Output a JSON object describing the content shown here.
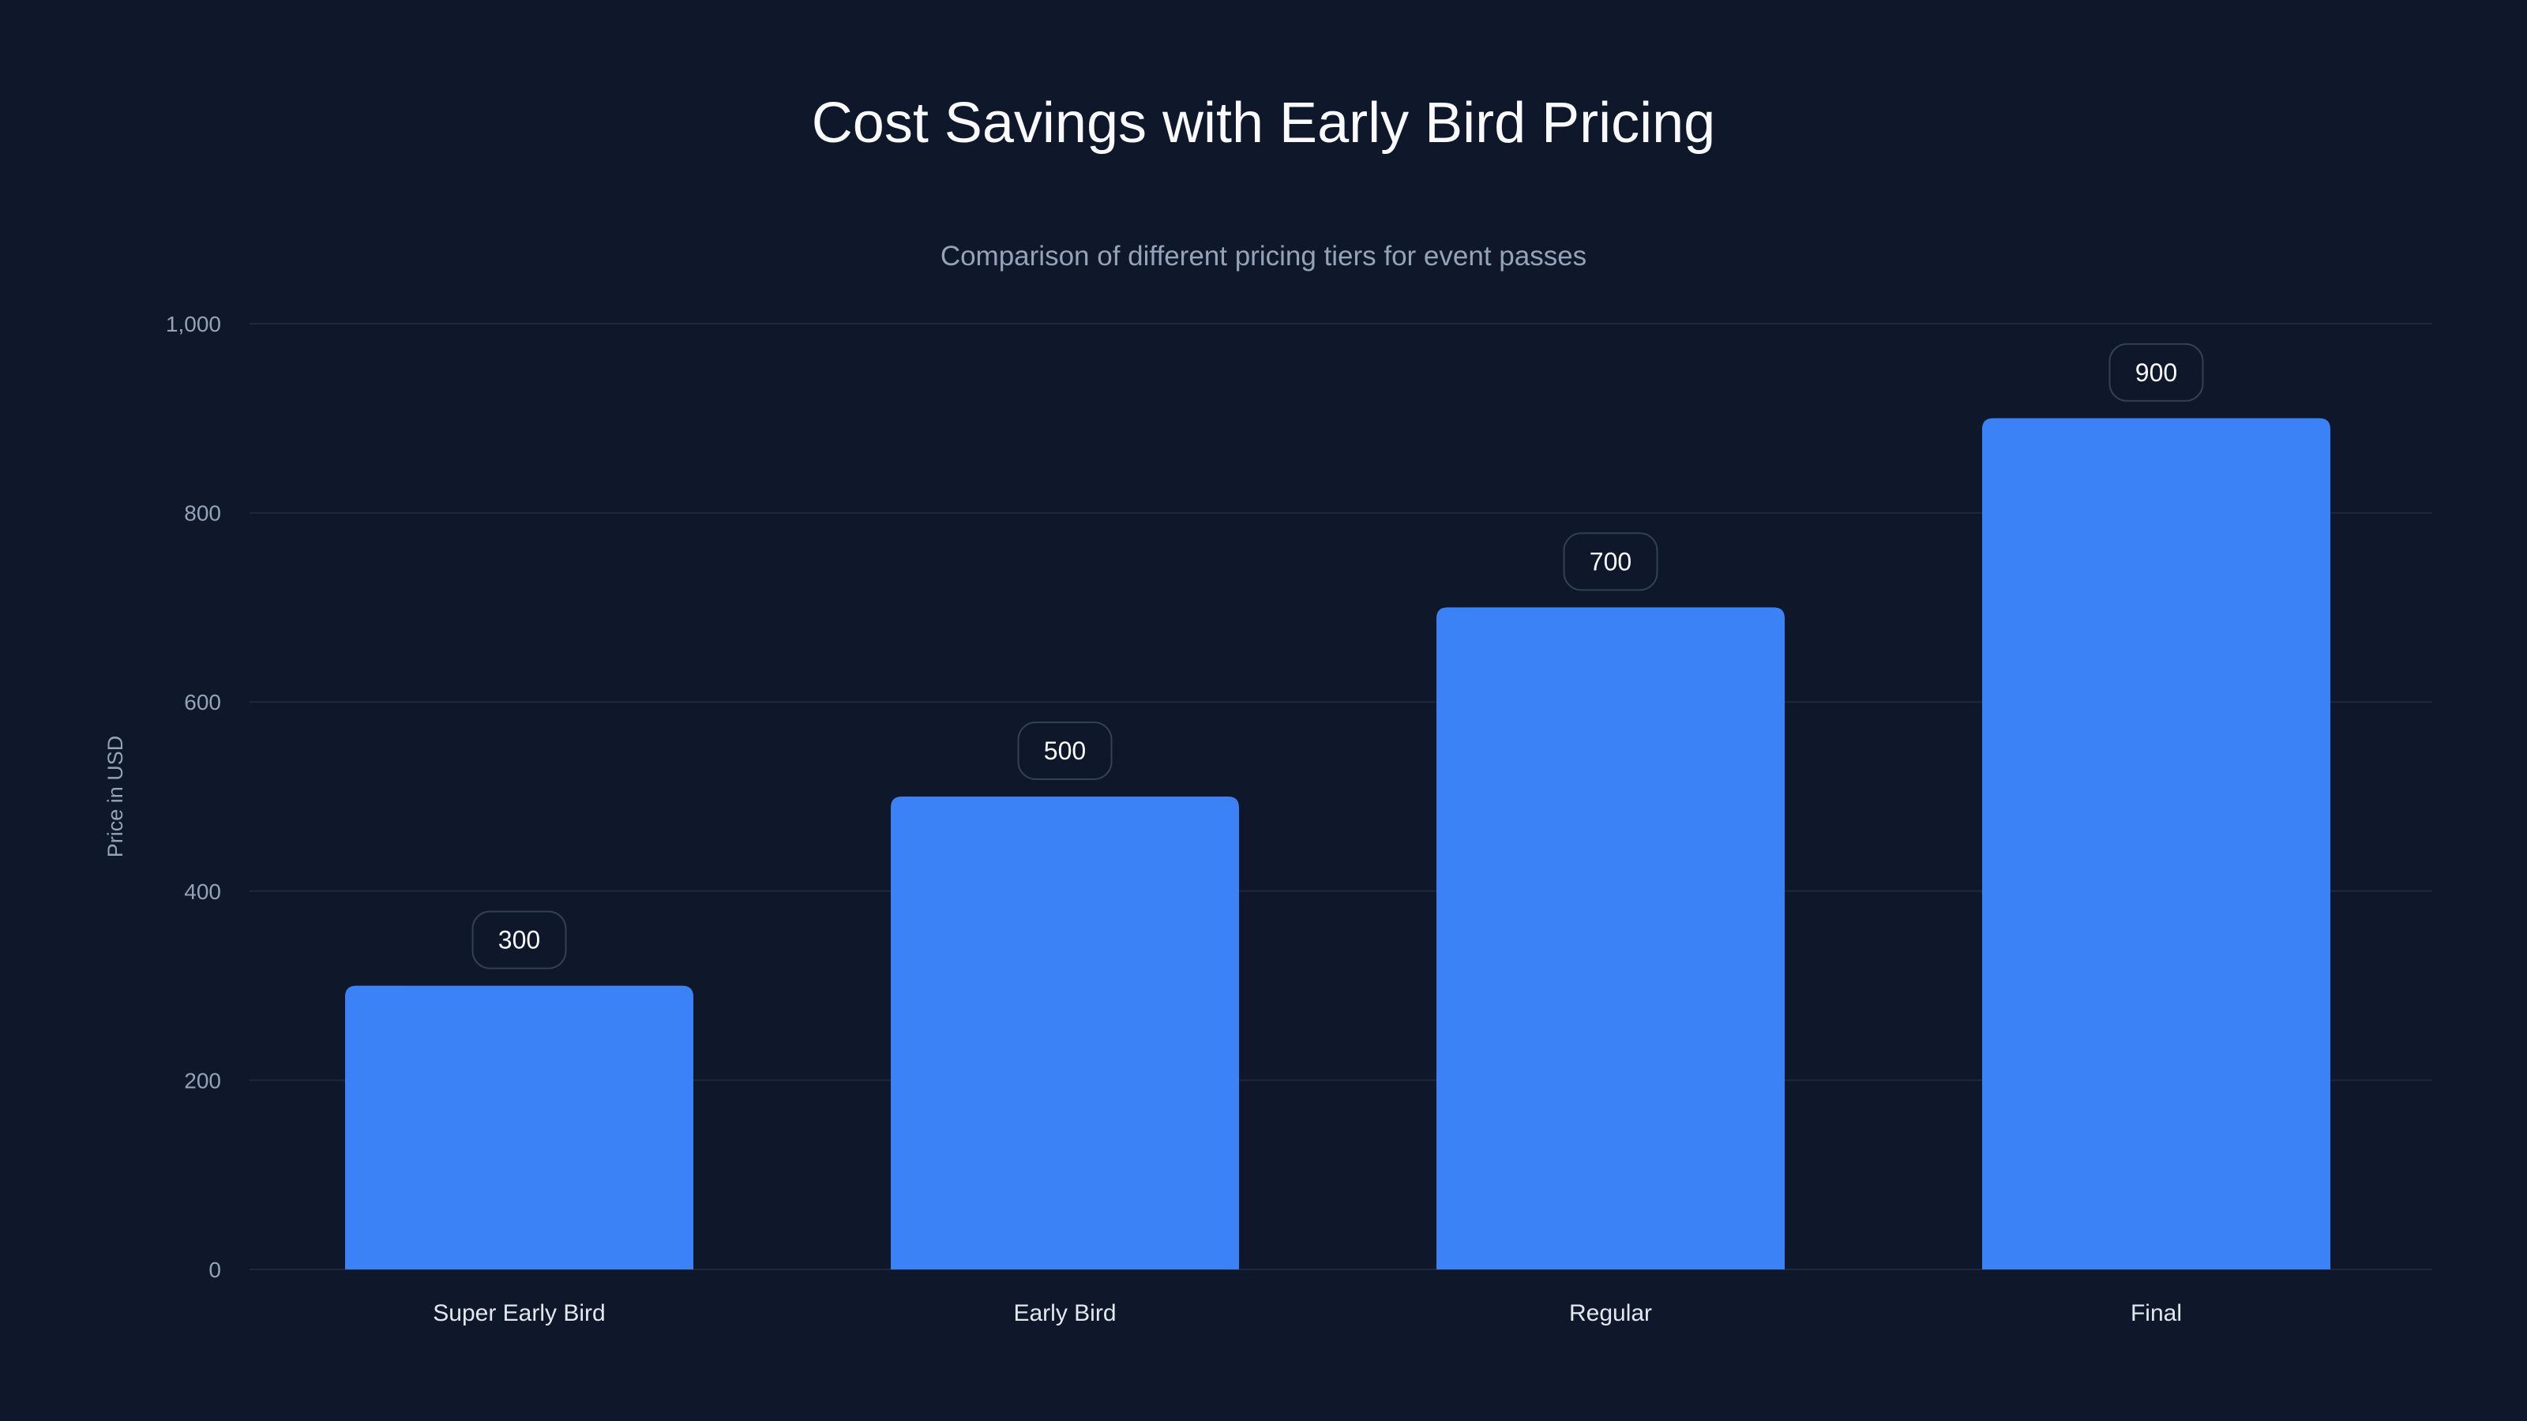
{
  "colors": {
    "background": "#0f172a",
    "bar": "#3b82f6",
    "grid": "#1e293b",
    "label_border": "#334155"
  },
  "chart_data": {
    "type": "bar",
    "title": "Cost Savings with Early Bird Pricing",
    "subtitle": "Comparison of different pricing tiers for event passes",
    "categories": [
      "Super Early Bird",
      "Early Bird",
      "Regular",
      "Final"
    ],
    "values": [
      300,
      500,
      700,
      900
    ],
    "xlabel": "",
    "ylabel": "Price in USD",
    "ylim": [
      0,
      1000
    ],
    "yticks": [
      0,
      200,
      400,
      600,
      800,
      1000
    ],
    "ytick_labels": [
      "0",
      "200",
      "400",
      "600",
      "800",
      "1,000"
    ],
    "grid": true,
    "legend": "none"
  }
}
